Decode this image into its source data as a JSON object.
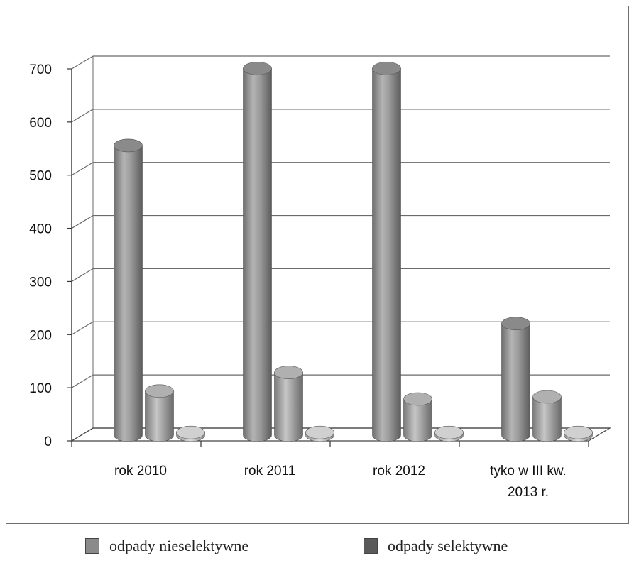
{
  "chart_data": {
    "type": "bar",
    "title": "",
    "xlabel": "",
    "ylabel": "",
    "ylim": [
      0,
      700
    ],
    "yticks": [
      0,
      100,
      200,
      300,
      400,
      500,
      600,
      700
    ],
    "grid": true,
    "legend_position": "bottom",
    "categories": [
      "rok 2010",
      "rok 2011",
      "rok 2012",
      "tyko w III kw. 2013 r."
    ],
    "series": [
      {
        "name": "odpady nieselektywne",
        "values": [
          545,
          690,
          690,
          210
        ],
        "color": "#8f8f8f"
      },
      {
        "name": "odpady selektywne",
        "values": [
          83,
          118,
          68,
          72
        ],
        "color": "#a8a8a8"
      },
      {
        "name": "",
        "values": [
          5,
          5,
          5,
          5
        ],
        "color": "#c8c8c8"
      }
    ]
  },
  "legend": {
    "items": [
      {
        "label": "odpady nieselektywne",
        "color": "#8a8a8a"
      },
      {
        "label": "odpady selektywne",
        "color": "#5a5a5a"
      }
    ]
  }
}
